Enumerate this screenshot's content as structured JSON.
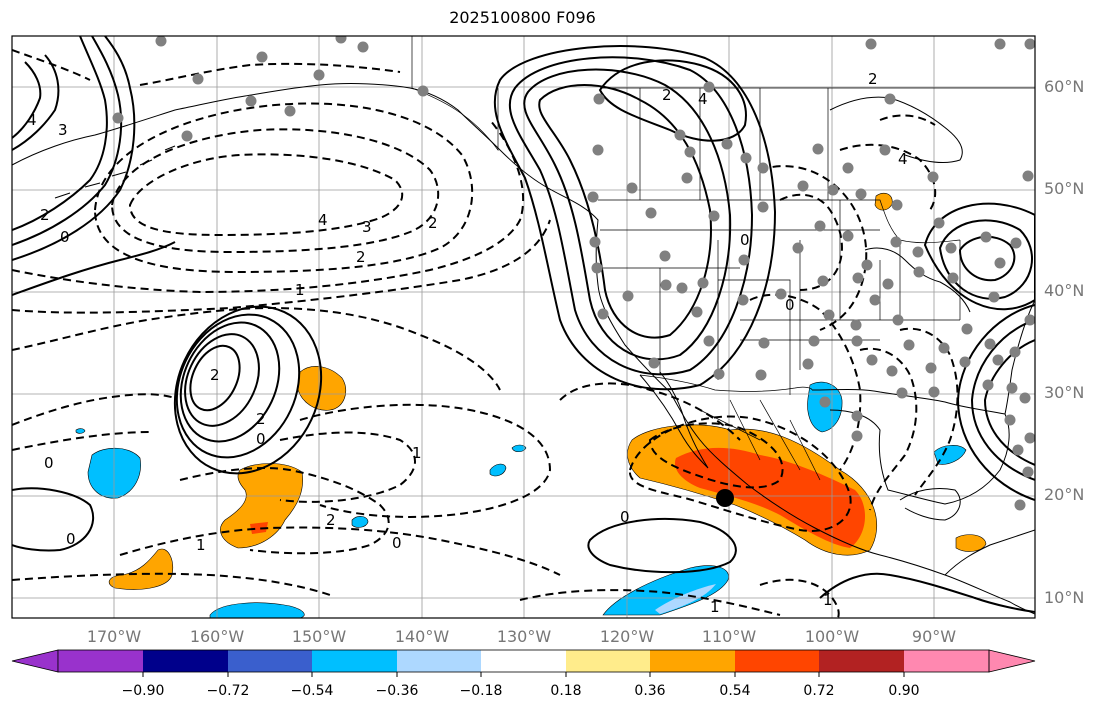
{
  "title": "2025100800 F096",
  "lat_labels": [
    "60°N",
    "50°N",
    "40°N",
    "30°N",
    "20°N",
    "10°N"
  ],
  "lon_labels": [
    "170°W",
    "160°W",
    "150°W",
    "140°W",
    "130°W",
    "120°W",
    "110°W",
    "100°W",
    "90°W"
  ],
  "colorbar": {
    "ticks": [
      "−0.90",
      "−0.72",
      "−0.54",
      "−0.36",
      "−0.18",
      "0.18",
      "0.36",
      "0.54",
      "0.72",
      "0.90"
    ],
    "colors": [
      "#9932cc",
      "#00008b",
      "#3a5fcd",
      "#00bfff",
      "#add8ff",
      "#ffffff",
      "#ffec8b",
      "#ffa500",
      "#ff4500",
      "#b22222",
      "#ff88b0"
    ]
  },
  "contour_labels": [
    {
      "text": "4"
    },
    {
      "text": "3"
    },
    {
      "text": "2"
    },
    {
      "text": "0"
    },
    {
      "text": "4"
    },
    {
      "text": "3"
    },
    {
      "text": "2"
    },
    {
      "text": "2"
    },
    {
      "text": "1"
    },
    {
      "text": "2"
    },
    {
      "text": "2"
    },
    {
      "text": "0"
    },
    {
      "text": "0"
    },
    {
      "text": "1"
    },
    {
      "text": "1"
    },
    {
      "text": "2"
    },
    {
      "text": "0"
    },
    {
      "text": "0"
    },
    {
      "text": "0"
    },
    {
      "text": "2"
    },
    {
      "text": "4"
    },
    {
      "text": "0"
    },
    {
      "text": "0"
    },
    {
      "text": "1"
    },
    {
      "text": "4"
    },
    {
      "text": "2"
    },
    {
      "text": "1"
    }
  ]
}
